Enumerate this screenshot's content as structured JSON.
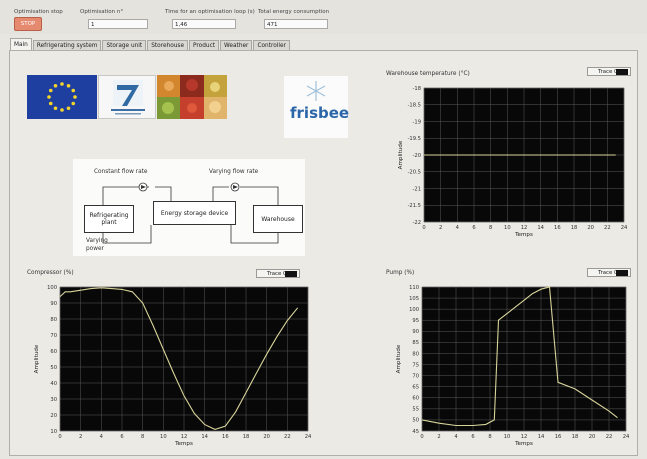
{
  "top": {
    "stop_label": "Optimisation stop",
    "stop_button": "STOP",
    "opt_n_label": "Optimisation n°",
    "opt_n_value": "1",
    "time_label": "Time for an optimisation loop (s)",
    "time_value": "1,46",
    "energy_label": "Total energy consumption",
    "energy_value": "471"
  },
  "tabs": [
    "Main",
    "Refrigerating system",
    "Storage unit",
    "Storehouse",
    "Product",
    "Weather",
    "Controller"
  ],
  "active_tab": "Main",
  "logos": {
    "frisbee": "frisbee"
  },
  "schematic": {
    "constant_flow": "Constant flow rate",
    "varying_flow": "Varying flow rate",
    "box_plant": "Refrigerating plant",
    "box_storage": "Energy storage device",
    "box_warehouse": "Warehouse",
    "varying_power": "Varying power"
  },
  "colors": {
    "plot_bg": "#080808",
    "grid": "#5a5a5a",
    "trace": "#d8d49a",
    "panel": "#eceae5"
  },
  "chart_data": [
    {
      "type": "line",
      "title": "Warehouse temperature (°C)",
      "trace_label": "Trace 0",
      "xlabel": "Temps",
      "ylabel": "Amplitude",
      "xlim": [
        0,
        24
      ],
      "ylim": [
        -22,
        -18
      ],
      "xticks": [
        "0",
        "2",
        "4",
        "6",
        "8",
        "10",
        "12",
        "14",
        "16",
        "18",
        "20",
        "22",
        "24"
      ],
      "yticks": [
        "-18",
        "-18.5",
        "-19",
        "-19.5",
        "-20",
        "-20.5",
        "-21",
        "-21.5",
        "-22"
      ],
      "x": [
        0,
        23
      ],
      "series": [
        {
          "values": [
            -20,
            -20
          ]
        }
      ]
    },
    {
      "type": "line",
      "title": "Compressor (%)",
      "trace_label": "Trace 0",
      "xlabel": "Temps",
      "ylabel": "Amplitude",
      "xlim": [
        0,
        24
      ],
      "ylim": [
        10,
        100
      ],
      "xticks": [
        "0",
        "2",
        "4",
        "6",
        "8",
        "10",
        "12",
        "14",
        "16",
        "18",
        "20",
        "22",
        "24"
      ],
      "yticks": [
        "100",
        "90",
        "80",
        "70",
        "60",
        "50",
        "40",
        "30",
        "20",
        "10"
      ],
      "x": [
        0,
        0.5,
        1,
        2,
        3,
        4,
        5,
        6,
        7,
        8,
        9,
        10,
        11,
        12,
        13,
        14,
        15,
        16,
        17,
        18,
        19,
        20,
        21,
        22,
        23
      ],
      "series": [
        {
          "values": [
            94,
            97,
            97,
            98,
            99,
            99.5,
            99,
            98.5,
            97,
            90,
            76,
            61,
            46,
            32,
            21,
            14,
            11,
            13,
            22,
            34,
            46,
            58,
            69,
            79,
            87
          ]
        }
      ]
    },
    {
      "type": "line",
      "title": "Pump (%)",
      "trace_label": "Trace 0",
      "xlabel": "Temps",
      "ylabel": "Amplitude",
      "xlim": [
        0,
        24
      ],
      "ylim": [
        45,
        110
      ],
      "xticks": [
        "0",
        "2",
        "4",
        "6",
        "8",
        "10",
        "12",
        "14",
        "16",
        "18",
        "20",
        "22",
        "24"
      ],
      "yticks": [
        "110",
        "105",
        "100",
        "95",
        "90",
        "85",
        "80",
        "75",
        "70",
        "65",
        "60",
        "55",
        "50",
        "45"
      ],
      "x": [
        0,
        2,
        4,
        6,
        7.5,
        8.5,
        9,
        10,
        11,
        12,
        13,
        14,
        15,
        16,
        18,
        20,
        22,
        23
      ],
      "series": [
        {
          "values": [
            50,
            48.5,
            47.5,
            47.5,
            48,
            50,
            95,
            98,
            101,
            104,
            107,
            109,
            110,
            67,
            64,
            59,
            54,
            51
          ]
        }
      ]
    }
  ]
}
